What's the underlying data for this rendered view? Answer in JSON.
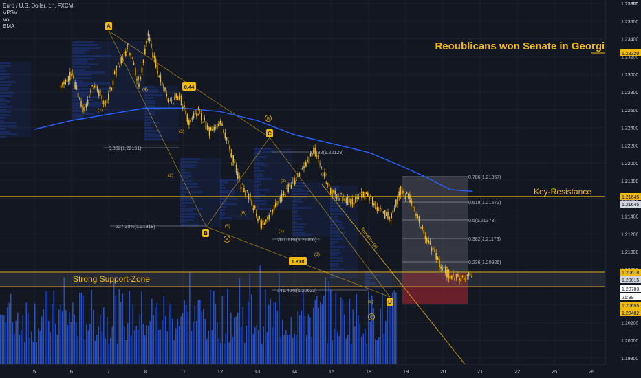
{
  "legend": {
    "symbol_line": "Euro / U.S. Dollar, 1h, FXCM",
    "indicators": [
      "VPSV",
      "Vol",
      "EMA"
    ]
  },
  "axis": {
    "currency": "USD",
    "y_ticks": [
      "1.23800",
      "1.23600",
      "1.23400",
      "1.23200",
      "1.23000",
      "1.22800",
      "1.22600",
      "1.22400",
      "1.22200",
      "1.22000",
      "1.21800",
      "1.21600",
      "1.21400",
      "1.21200",
      "1.21000",
      "1.20800",
      "1.20600",
      "1.20400",
      "1.20200",
      "1.20000",
      "1.19800"
    ],
    "x_ticks": [
      "5",
      "6",
      "7",
      "8",
      "11",
      "12",
      "13",
      "14",
      "15",
      "18",
      "19",
      "20",
      "21",
      "22",
      "25",
      "26"
    ]
  },
  "price_tags": [
    {
      "label": "1.23320",
      "bg": "#f0b90b",
      "fg": "#131722"
    },
    {
      "label": "1.21645",
      "bg": "#f0b90b",
      "fg": "#131722"
    },
    {
      "label": "1.21645",
      "bg": "#d1d4dc",
      "fg": "#131722"
    },
    {
      "label": "1.20618",
      "bg": "#f0b90b",
      "fg": "#131722"
    },
    {
      "label": "1.20815",
      "bg": "#d1d4dc",
      "fg": "#131722"
    },
    {
      "label": "1.20783",
      "bg": "#ffffff",
      "fg": "#131722"
    },
    {
      "label": "21:39",
      "bg": "#ffffff",
      "fg": "#131722"
    },
    {
      "label": "1.20655",
      "bg": "#f0b90b",
      "fg": "#131722"
    },
    {
      "label": "1.20482",
      "bg": "#f0b90b",
      "fg": "#131722"
    }
  ],
  "annotations": {
    "headline": "Reoublicans won Senate in Georgia",
    "resistance_label": "Key-Resistance",
    "support_label": "Strong Support-Zone",
    "trendline_label": "Trendline (a)",
    "wave_boxes": [
      "A",
      "B",
      "C",
      "D"
    ],
    "ratio_boxes": [
      "0.44",
      "1.818"
    ],
    "circled": [
      "B",
      "A",
      "C"
    ],
    "minor_labels": [
      "(1)",
      "(2)",
      "(3)",
      "(4)",
      "(5)",
      "(A)",
      "(B)",
      "(1)",
      "(2)",
      "(3)",
      "(4)",
      "(5)"
    ],
    "fib_levels_left": [
      "0.382(1.22151)",
      "227.20%(1.21319)",
      "0.382(1.22128)",
      "200.00%(1.21166)",
      "141.40%(1.20622)"
    ],
    "fib_levels_right": [
      "0.786(1.21857)",
      "0.618(1.21572)",
      "0.5(1.21373)",
      "0.382(1.21173)",
      "0.236(1.20926)"
    ]
  },
  "colors": {
    "background": "#131722",
    "candle": "#f0b90b",
    "ema": "#2962ff",
    "volume": "#2962ff",
    "grid": "#1e222d",
    "accent": "#f0b90b",
    "text": "#d1d4dc"
  },
  "chart_data": {
    "type": "candlestick",
    "title": "Euro / U.S. Dollar, 1h, FXCM",
    "ylim": [
      1.1975,
      1.239
    ],
    "price_path": [
      [
        4.7,
        1.2285
      ],
      [
        5.0,
        1.23
      ],
      [
        5.3,
        1.2258
      ],
      [
        5.6,
        1.2288
      ],
      [
        5.9,
        1.2265
      ],
      [
        6.2,
        1.2305
      ],
      [
        6.5,
        1.233
      ],
      [
        6.8,
        1.229
      ],
      [
        7.05,
        1.2342
      ],
      [
        7.3,
        1.2305
      ],
      [
        7.6,
        1.227
      ],
      [
        7.9,
        1.2275
      ],
      [
        8.15,
        1.2245
      ],
      [
        8.4,
        1.226
      ],
      [
        8.7,
        1.2235
      ],
      [
        9.0,
        1.2248
      ],
      [
        9.3,
        1.221
      ],
      [
        9.55,
        1.2175
      ],
      [
        9.8,
        1.216
      ],
      [
        10.1,
        1.213
      ],
      [
        10.4,
        1.2145
      ],
      [
        10.7,
        1.2165
      ],
      [
        11.0,
        1.218
      ],
      [
        11.3,
        1.22
      ],
      [
        11.55,
        1.2215
      ],
      [
        11.8,
        1.2185
      ],
      [
        12.0,
        1.2165
      ],
      [
        12.3,
        1.216
      ],
      [
        12.55,
        1.2155
      ],
      [
        12.8,
        1.2165
      ],
      [
        13.05,
        1.216
      ],
      [
        13.3,
        1.2145
      ],
      [
        13.6,
        1.214
      ],
      [
        13.85,
        1.2168
      ],
      [
        14.1,
        1.216
      ],
      [
        14.35,
        1.2135
      ],
      [
        14.6,
        1.211
      ],
      [
        14.85,
        1.209
      ],
      [
        15.1,
        1.2075
      ],
      [
        15.35,
        1.207
      ],
      [
        15.6,
        1.2068
      ],
      [
        15.8,
        1.2078
      ]
    ],
    "ema_path": [
      [
        4.0,
        1.2238
      ],
      [
        5.0,
        1.2248
      ],
      [
        6.0,
        1.2255
      ],
      [
        7.0,
        1.2262
      ],
      [
        8.0,
        1.2262
      ],
      [
        9.0,
        1.2258
      ],
      [
        10.0,
        1.2248
      ],
      [
        11.0,
        1.2232
      ],
      [
        12.0,
        1.2222
      ],
      [
        13.0,
        1.2212
      ],
      [
        13.8,
        1.2198
      ],
      [
        14.5,
        1.2185
      ],
      [
        15.2,
        1.217
      ],
      [
        15.8,
        1.2168
      ]
    ],
    "wave_points": {
      "A": [
        7.05,
        1.2342
      ],
      "B": [
        10.1,
        1.2132
      ],
      "C": [
        11.55,
        1.2213
      ],
      "D": [
        15.55,
        1.2062
      ]
    },
    "horizontal_levels": {
      "key_resistance": 1.21645,
      "strong_support": 1.20618,
      "support_lower": 1.20783,
      "headline_level": 1.2332
    }
  }
}
